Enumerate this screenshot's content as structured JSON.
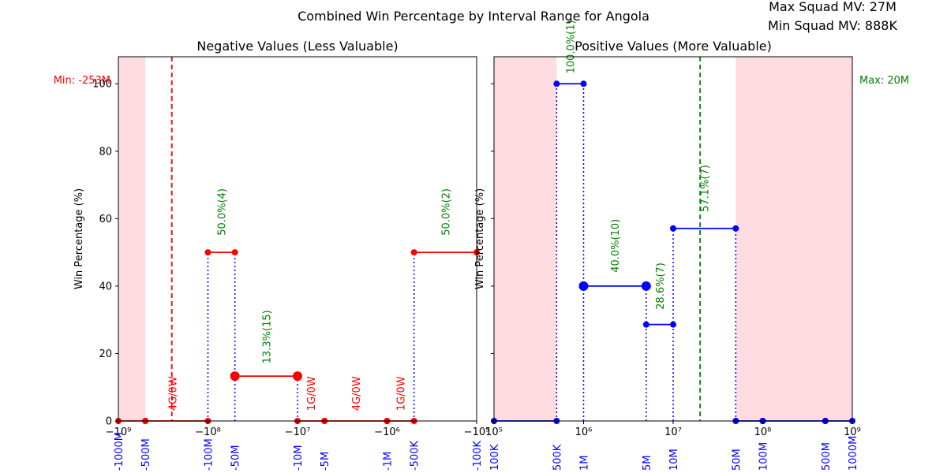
{
  "chart_data": [
    {
      "type": "line",
      "title": "Negative Values (Less Valuable)",
      "xlabel": "",
      "ylabel": "Win Percentage (%)",
      "xscale": "symlog",
      "ylim": [
        0,
        108
      ],
      "yticks": [
        "0",
        "20",
        "40",
        "60",
        "80",
        "100"
      ],
      "xticks": [
        {
          "x": -1000000000,
          "label": "−10⁹"
        },
        {
          "x": -100000000,
          "label": "−10⁸"
        },
        {
          "x": -10000000,
          "label": "−10⁷"
        },
        {
          "x": -1000000,
          "label": "−10⁶"
        },
        {
          "x": -100000,
          "label": "−10⁵"
        }
      ],
      "bin_labels": [
        {
          "x": -1000000000,
          "label": "-1000M"
        },
        {
          "x": -500000000,
          "label": "-500M"
        },
        {
          "x": -100000000,
          "label": "-100M"
        },
        {
          "x": -50000000,
          "label": "-50M"
        },
        {
          "x": -10000000,
          "label": "-10M"
        },
        {
          "x": -5000000,
          "label": "-5M"
        },
        {
          "x": -1000000,
          "label": "-1M"
        },
        {
          "x": -500000,
          "label": "-500K"
        },
        {
          "x": -100000,
          "label": "-100K"
        }
      ],
      "shaded_regions": [
        [
          -1000000000,
          -500000000
        ]
      ],
      "reference_line": {
        "x": -253000000,
        "label": "Min: -253M",
        "color": "#ff0000"
      },
      "segments": [
        {
          "x1": -1000000000,
          "x2": -500000000,
          "y": 0
        },
        {
          "x1": -500000000,
          "x2": -100000000,
          "y": 0
        },
        {
          "x1": -100000000,
          "x2": -50000000,
          "y": 50
        },
        {
          "x1": -50000000,
          "x2": -10000000,
          "y": 13.3
        },
        {
          "x1": -10000000,
          "x2": -5000000,
          "y": 0
        },
        {
          "x1": -5000000,
          "x2": -1000000,
          "y": 0
        },
        {
          "x1": -1000000,
          "x2": -500000,
          "y": 0
        },
        {
          "x1": -500000,
          "x2": -100000,
          "y": 50
        }
      ],
      "big_markers": [
        {
          "x": -50000000,
          "y": 13.3
        },
        {
          "x": -10000000,
          "y": 13.3
        }
      ],
      "annotations": [
        {
          "x": -250000000,
          "y": 3,
          "text": "4G/0W",
          "color": "#ff0000"
        },
        {
          "x": -70710678,
          "y": 55,
          "text": "50.0%(4)",
          "color": "#008000"
        },
        {
          "x": -22360680,
          "y": 17,
          "text": "13.3%(15)",
          "color": "#008000"
        },
        {
          "x": -7071068,
          "y": 3,
          "text": "1G/0W",
          "color": "#ff0000"
        },
        {
          "x": -2236068,
          "y": 3,
          "text": "4G/0W",
          "color": "#ff0000"
        },
        {
          "x": -707107,
          "y": 3,
          "text": "1G/0W",
          "color": "#ff0000"
        },
        {
          "x": -223607,
          "y": 55,
          "text": "50.0%(2)",
          "color": "#008000"
        }
      ]
    },
    {
      "type": "line",
      "title": "Positive Values (More Valuable)",
      "xlabel": "",
      "ylabel": "Win Percentage (%)",
      "xscale": "log",
      "ylim": [
        0,
        108
      ],
      "yticks": [
        "0",
        "20",
        "40",
        "60",
        "80",
        "100"
      ],
      "xticks": [
        {
          "x": 100000,
          "label": "10⁵"
        },
        {
          "x": 1000000,
          "label": "10⁶"
        },
        {
          "x": 10000000,
          "label": "10⁷"
        },
        {
          "x": 100000000,
          "label": "10⁸"
        },
        {
          "x": 1000000000,
          "label": "10⁹"
        }
      ],
      "bin_labels": [
        {
          "x": 100000,
          "label": "100K"
        },
        {
          "x": 500000,
          "label": "500K"
        },
        {
          "x": 1000000,
          "label": "1M"
        },
        {
          "x": 5000000,
          "label": "5M"
        },
        {
          "x": 10000000,
          "label": "10M"
        },
        {
          "x": 50000000,
          "label": "50M"
        },
        {
          "x": 100000000,
          "label": "100M"
        },
        {
          "x": 500000000,
          "label": "500M"
        },
        {
          "x": 1000000000,
          "label": "1000M"
        }
      ],
      "shaded_regions": [
        [
          100000,
          500000
        ],
        [
          50000000,
          1000000000
        ]
      ],
      "reference_line": {
        "x": 20000000,
        "label": "Max: 20M",
        "color": "#008000"
      },
      "segments": [
        {
          "x1": 100000,
          "x2": 500000,
          "y": 0
        },
        {
          "x1": 500000,
          "x2": 1000000,
          "y": 100
        },
        {
          "x1": 1000000,
          "x2": 5000000,
          "y": 40
        },
        {
          "x1": 5000000,
          "x2": 10000000,
          "y": 28.6
        },
        {
          "x1": 10000000,
          "x2": 50000000,
          "y": 57.1
        },
        {
          "x1": 50000000,
          "x2": 100000000,
          "y": 0
        },
        {
          "x1": 100000000,
          "x2": 500000000,
          "y": 0
        },
        {
          "x1": 500000000,
          "x2": 1000000000,
          "y": 0
        }
      ],
      "big_markers": [
        {
          "x": 1000000,
          "y": 40
        },
        {
          "x": 5000000,
          "y": 40
        }
      ],
      "annotations": [
        {
          "x": 707107,
          "y": 103,
          "text": "100.0%(1)",
          "color": "#008000"
        },
        {
          "x": 2236068,
          "y": 44,
          "text": "40.0%(10)",
          "color": "#008000"
        },
        {
          "x": 7071068,
          "y": 33,
          "text": "28.6%(7)",
          "color": "#008000"
        },
        {
          "x": 22360680,
          "y": 62,
          "text": "57.1%(7)",
          "color": "#008000"
        }
      ]
    }
  ],
  "suptitle": "Combined Win Percentage by Interval Range for Angola",
  "info": {
    "max_mv": "Max Squad MV: 27M",
    "min_mv": "Min Squad MV: 888K"
  }
}
